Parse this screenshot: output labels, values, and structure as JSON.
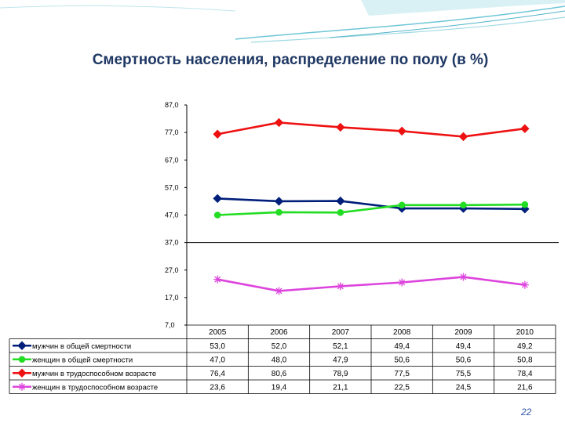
{
  "slide": {
    "title": "Смертность населения, распределение по полу (в %)",
    "page_number": "22",
    "colors": {
      "title": "#1f3864",
      "decor_teal": "#4fb3c7"
    }
  },
  "chart_data": {
    "type": "line",
    "title": "",
    "xlabel": "",
    "ylabel": "",
    "x": [
      "2005",
      "2006",
      "2007",
      "2008",
      "2009",
      "2010"
    ],
    "ylim": [
      7,
      87
    ],
    "yticks": [
      "87,0",
      "77,0",
      "67,0",
      "57,0",
      "47,0",
      "37,0",
      "27,0",
      "17,0",
      "7,0"
    ],
    "grid": false,
    "legend": "data-table-below",
    "series": [
      {
        "name": "мужчин в общей смертности",
        "values": [
          53.0,
          52.0,
          52.1,
          49.4,
          49.4,
          49.2
        ],
        "labels": [
          "53,0",
          "52,0",
          "52,1",
          "49,4",
          "49,4",
          "49,2"
        ],
        "color": "#001f7a",
        "marker": "diamond"
      },
      {
        "name": "женщин в общей смертности",
        "values": [
          47.0,
          48.0,
          47.9,
          50.6,
          50.6,
          50.8
        ],
        "labels": [
          "47,0",
          "48,0",
          "47,9",
          "50,6",
          "50,6",
          "50,8"
        ],
        "color": "#22dd22",
        "marker": "circle"
      },
      {
        "name": "мужчин в трудоспособном возрасте",
        "values": [
          76.4,
          80.6,
          78.9,
          77.5,
          75.5,
          78.4
        ],
        "labels": [
          "76,4",
          "80,6",
          "78,9",
          "77,5",
          "75,5",
          "78,4"
        ],
        "color": "#ee1111",
        "marker": "diamond"
      },
      {
        "name": "женщин в трудоспособном возрасте",
        "values": [
          23.6,
          19.4,
          21.1,
          22.5,
          24.5,
          21.6
        ],
        "labels": [
          "23,6",
          "19,4",
          "21,1",
          "22,5",
          "24,5",
          "21,6"
        ],
        "color": "#dd44dd",
        "marker": "star"
      }
    ]
  }
}
